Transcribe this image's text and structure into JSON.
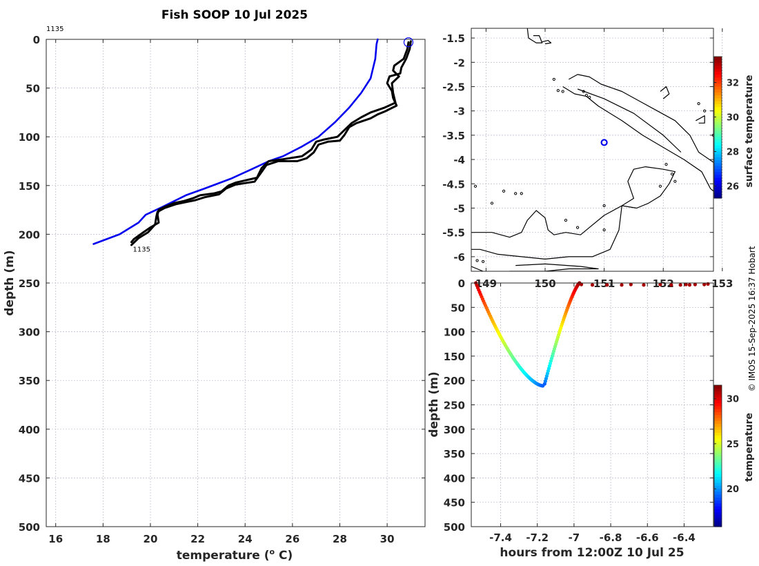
{
  "chart_data": [
    {
      "type": "line",
      "title": "Fish SOOP 10 Jul 2025",
      "xlabel": "temperature (",
      "xlabel_sup": "o",
      "xlabel_suffix": " C)",
      "ylabel": "depth (m)",
      "xlim": [
        15.6,
        31.6
      ],
      "ylim": [
        0,
        500
      ],
      "xticks": [
        16,
        18,
        20,
        22,
        24,
        26,
        28,
        30
      ],
      "yticks": [
        0,
        50,
        100,
        150,
        200,
        250,
        300,
        350,
        400,
        450,
        500
      ],
      "annotation_top": "1135",
      "annotation_end": "1135",
      "colors": {
        "reference": "#0000ee",
        "profile": "#000000",
        "marker": "#0000ee"
      },
      "series": [
        {
          "name": "reference",
          "points": [
            [
              29.6,
              0
            ],
            [
              29.55,
              5
            ],
            [
              29.5,
              20
            ],
            [
              29.3,
              40
            ],
            [
              28.9,
              55
            ],
            [
              28.4,
              70
            ],
            [
              27.8,
              85
            ],
            [
              27.1,
              100
            ],
            [
              26.4,
              110
            ],
            [
              25.6,
              120
            ],
            [
              25.0,
              125
            ],
            [
              24.3,
              133
            ],
            [
              23.4,
              143
            ],
            [
              22.3,
              153
            ],
            [
              21.5,
              160
            ],
            [
              20.5,
              172
            ],
            [
              19.8,
              180
            ],
            [
              19.5,
              188
            ],
            [
              18.7,
              200
            ],
            [
              17.6,
              210
            ]
          ]
        },
        {
          "name": "downcast",
          "points": [
            [
              30.9,
              3
            ],
            [
              30.85,
              10
            ],
            [
              30.7,
              20
            ],
            [
              30.3,
              27
            ],
            [
              30.25,
              32
            ],
            [
              30.5,
              38
            ],
            [
              30.2,
              45
            ],
            [
              30.25,
              55
            ],
            [
              30.35,
              65
            ],
            [
              29.9,
              70
            ],
            [
              29.3,
              75
            ],
            [
              28.9,
              80
            ],
            [
              28.5,
              86
            ],
            [
              28.2,
              93
            ],
            [
              27.9,
              100
            ],
            [
              27.3,
              103
            ],
            [
              27.0,
              105
            ],
            [
              26.8,
              113
            ],
            [
              26.4,
              120
            ],
            [
              25.6,
              123
            ],
            [
              25.0,
              125
            ],
            [
              24.7,
              132
            ],
            [
              24.5,
              142
            ],
            [
              23.6,
              147
            ],
            [
              23.3,
              150
            ],
            [
              23.0,
              156
            ],
            [
              22.7,
              158
            ],
            [
              22.1,
              160
            ],
            [
              21.8,
              163
            ],
            [
              21.4,
              166
            ],
            [
              21.0,
              168
            ],
            [
              20.6,
              172
            ],
            [
              20.35,
              175
            ],
            [
              20.3,
              180
            ],
            [
              20.35,
              188
            ],
            [
              20.0,
              193
            ],
            [
              19.7,
              198
            ],
            [
              19.3,
              205
            ],
            [
              19.2,
              208
            ]
          ]
        },
        {
          "name": "upcast",
          "points": [
            [
              19.2,
              211
            ],
            [
              19.5,
              204
            ],
            [
              19.9,
              198
            ],
            [
              20.2,
              190
            ],
            [
              20.25,
              182
            ],
            [
              20.3,
              177
            ],
            [
              20.6,
              173
            ],
            [
              21.1,
              169
            ],
            [
              21.5,
              167
            ],
            [
              21.9,
              165
            ],
            [
              22.3,
              162
            ],
            [
              22.9,
              159
            ],
            [
              23.2,
              153
            ],
            [
              23.6,
              149
            ],
            [
              24.4,
              146
            ],
            [
              24.7,
              136
            ],
            [
              24.9,
              129
            ],
            [
              25.4,
              125
            ],
            [
              26.2,
              125
            ],
            [
              26.6,
              122
            ],
            [
              26.9,
              116
            ],
            [
              27.1,
              108
            ],
            [
              27.5,
              105
            ],
            [
              28.0,
              104
            ],
            [
              28.2,
              98
            ],
            [
              28.4,
              90
            ],
            [
              28.7,
              86
            ],
            [
              29.3,
              81
            ],
            [
              29.6,
              77
            ],
            [
              29.9,
              74
            ],
            [
              30.4,
              68
            ],
            [
              30.25,
              60
            ],
            [
              30.2,
              53
            ],
            [
              30.0,
              45
            ],
            [
              30.1,
              38
            ],
            [
              30.55,
              35
            ],
            [
              30.6,
              29
            ],
            [
              30.8,
              20
            ],
            [
              30.95,
              10
            ],
            [
              31.0,
              2
            ]
          ]
        }
      ],
      "marker": {
        "x": 30.9,
        "y": 3
      }
    },
    {
      "type": "map",
      "xlim": [
        148.75,
        152.85
      ],
      "ylim": [
        -6.3,
        -1.3
      ],
      "yticks": [
        -1.5,
        -2,
        -2.5,
        -3,
        -3.5,
        -4,
        -4.5,
        -5,
        -5.5,
        -6
      ],
      "xticks": [
        149,
        150,
        151,
        152,
        153
      ],
      "xtick_labels": [
        "149",
        "150",
        "151",
        "152",
        "153"
      ],
      "colorbar": {
        "label": "surface temperature",
        "ticks": [
          26,
          28,
          30,
          32
        ],
        "range": [
          25.3,
          33.5
        ]
      },
      "position": {
        "lon": 151.0,
        "lat": -3.65
      },
      "coast_color": "#000000",
      "marker_color": "#0000ee",
      "coastlines": [
        [
          [
            149.7,
            -1.3
          ],
          [
            149.72,
            -1.5
          ],
          [
            149.85,
            -1.6
          ],
          [
            149.95,
            -1.6
          ],
          [
            149.9,
            -1.45
          ],
          [
            149.8,
            -1.45
          ]
        ],
        [
          [
            149.95,
            -1.58
          ],
          [
            150.05,
            -1.55
          ],
          [
            150.1,
            -1.6
          ],
          [
            150.0,
            -1.62
          ]
        ],
        [
          [
            150.4,
            -2.35
          ],
          [
            150.55,
            -2.25
          ],
          [
            150.75,
            -2.3
          ],
          [
            150.95,
            -2.45
          ],
          [
            151.3,
            -2.6
          ],
          [
            151.6,
            -2.8
          ],
          [
            151.9,
            -3.0
          ],
          [
            152.2,
            -3.2
          ],
          [
            152.45,
            -3.5
          ],
          [
            152.6,
            -3.85
          ],
          [
            152.9,
            -4.1
          ],
          [
            153.05,
            -4.45
          ],
          [
            152.95,
            -4.75
          ],
          [
            152.8,
            -4.6
          ],
          [
            152.65,
            -4.25
          ],
          [
            152.35,
            -4.0
          ],
          [
            152.0,
            -3.75
          ],
          [
            151.65,
            -3.5
          ],
          [
            151.3,
            -3.2
          ],
          [
            150.9,
            -2.9
          ],
          [
            150.7,
            -2.7
          ],
          [
            150.5,
            -2.65
          ],
          [
            150.3,
            -2.5
          ]
        ],
        [
          [
            150.55,
            -2.55
          ],
          [
            151.0,
            -2.75
          ],
          [
            151.5,
            -3.05
          ],
          [
            152.0,
            -3.5
          ],
          [
            152.3,
            -3.85
          ]
        ],
        [
          [
            148.75,
            -5.5
          ],
          [
            149.1,
            -5.5
          ],
          [
            149.4,
            -5.6
          ],
          [
            149.6,
            -5.5
          ],
          [
            149.7,
            -5.25
          ],
          [
            149.85,
            -5.05
          ],
          [
            150.0,
            -5.2
          ],
          [
            150.05,
            -5.45
          ],
          [
            150.15,
            -5.55
          ],
          [
            150.35,
            -5.5
          ],
          [
            150.6,
            -5.55
          ],
          [
            150.75,
            -5.4
          ],
          [
            151.0,
            -5.15
          ],
          [
            151.3,
            -4.95
          ],
          [
            151.55,
            -5.0
          ],
          [
            151.75,
            -4.9
          ],
          [
            151.95,
            -4.75
          ],
          [
            152.1,
            -4.5
          ],
          [
            152.2,
            -4.25
          ],
          [
            152.0,
            -4.2
          ],
          [
            151.7,
            -4.15
          ],
          [
            151.5,
            -4.2
          ],
          [
            151.4,
            -4.45
          ],
          [
            151.5,
            -4.8
          ],
          [
            151.3,
            -4.95
          ],
          [
            151.25,
            -5.45
          ],
          [
            151.1,
            -5.85
          ],
          [
            150.8,
            -6.0
          ],
          [
            150.4,
            -6.0
          ],
          [
            150.0,
            -6.05
          ],
          [
            149.6,
            -6.0
          ],
          [
            149.2,
            -5.95
          ],
          [
            148.9,
            -5.85
          ],
          [
            148.75,
            -5.85
          ]
        ],
        [
          [
            149.4,
            -6.3
          ],
          [
            150.0,
            -6.3
          ],
          [
            150.4,
            -6.25
          ],
          [
            150.9,
            -6.25
          ],
          [
            150.6,
            -6.2
          ],
          [
            150.0,
            -6.15
          ],
          [
            149.5,
            -6.18
          ]
        ],
        [
          [
            148.75,
            -6.2
          ],
          [
            148.95,
            -6.3
          ]
        ],
        [
          [
            151.95,
            -2.6
          ],
          [
            152.05,
            -2.5
          ],
          [
            152.1,
            -2.65
          ],
          [
            152.0,
            -2.75
          ]
        ],
        [
          [
            152.55,
            -3.2
          ],
          [
            152.7,
            -3.1
          ],
          [
            152.7,
            -3.25
          ],
          [
            152.6,
            -3.25
          ]
        ]
      ],
      "islands": [
        [
          150.15,
          -2.35
        ],
        [
          150.22,
          -2.58
        ],
        [
          150.3,
          -2.6
        ],
        [
          150.65,
          -2.6
        ],
        [
          150.7,
          -2.68
        ],
        [
          150.75,
          -2.72
        ],
        [
          152.6,
          -2.85
        ],
        [
          152.7,
          -3.0
        ],
        [
          152.85,
          -3.5
        ],
        [
          152.95,
          -3.45
        ],
        [
          148.82,
          -4.55
        ],
        [
          149.3,
          -4.65
        ],
        [
          149.5,
          -4.7
        ],
        [
          149.6,
          -4.7
        ],
        [
          149.1,
          -4.9
        ],
        [
          150.35,
          -5.25
        ],
        [
          150.55,
          -5.4
        ],
        [
          151.0,
          -5.45
        ],
        [
          151.0,
          -4.95
        ],
        [
          152.05,
          -4.1
        ],
        [
          152.15,
          -4.3
        ],
        [
          151.95,
          -4.55
        ],
        [
          152.2,
          -4.45
        ],
        [
          148.85,
          -6.08
        ],
        [
          148.95,
          -6.1
        ]
      ]
    },
    {
      "type": "scatter",
      "xlabel": "hours from 12:00Z 10 Jul 25",
      "ylabel": "depth (m)",
      "xlim": [
        -7.56,
        -6.24
      ],
      "ylim": [
        0,
        500
      ],
      "xticks": [
        -7.4,
        -7.2,
        -7,
        -6.8,
        -6.6,
        -6.4
      ],
      "yticks": [
        0,
        50,
        100,
        150,
        200,
        250,
        300,
        350,
        400,
        450,
        500
      ],
      "colorbar": {
        "label": "temperature",
        "ticks": [
          20,
          25,
          30
        ],
        "range": [
          15.8,
          31.5
        ]
      },
      "down_leg": {
        "x_start": -7.535,
        "x_end": -7.17,
        "depth_end": 211,
        "temp_start": 30.9,
        "temp_end": 19.2
      },
      "up_leg": {
        "x_start": -7.16,
        "x_end": -6.97,
        "depth_start": 207,
        "temp_start": 19.2,
        "temp_end": 31.0
      },
      "surface_points": [
        {
          "x": -6.96,
          "y": 3,
          "t": 30.9
        },
        {
          "x": -6.9,
          "y": 4,
          "t": 30.9
        },
        {
          "x": -6.82,
          "y": 4,
          "t": 30.9
        },
        {
          "x": -6.74,
          "y": 4,
          "t": 30.9
        },
        {
          "x": -6.69,
          "y": 3,
          "t": 30.9
        },
        {
          "x": -6.62,
          "y": 4,
          "t": 30.9
        },
        {
          "x": -6.53,
          "y": 3,
          "t": 30.9
        },
        {
          "x": -6.47,
          "y": 4,
          "t": 30.9
        },
        {
          "x": -6.42,
          "y": 4,
          "t": 30.9
        },
        {
          "x": -6.39,
          "y": 3,
          "t": 30.9
        },
        {
          "x": -6.37,
          "y": 4,
          "t": 30.9
        },
        {
          "x": -6.34,
          "y": 3,
          "t": 30.9
        },
        {
          "x": -6.29,
          "y": 3,
          "t": 30.9
        },
        {
          "x": -6.27,
          "y": 2,
          "t": 30.9
        }
      ]
    }
  ],
  "credit": "© IMOS 15-Sep-2025 16:37 Hobart"
}
